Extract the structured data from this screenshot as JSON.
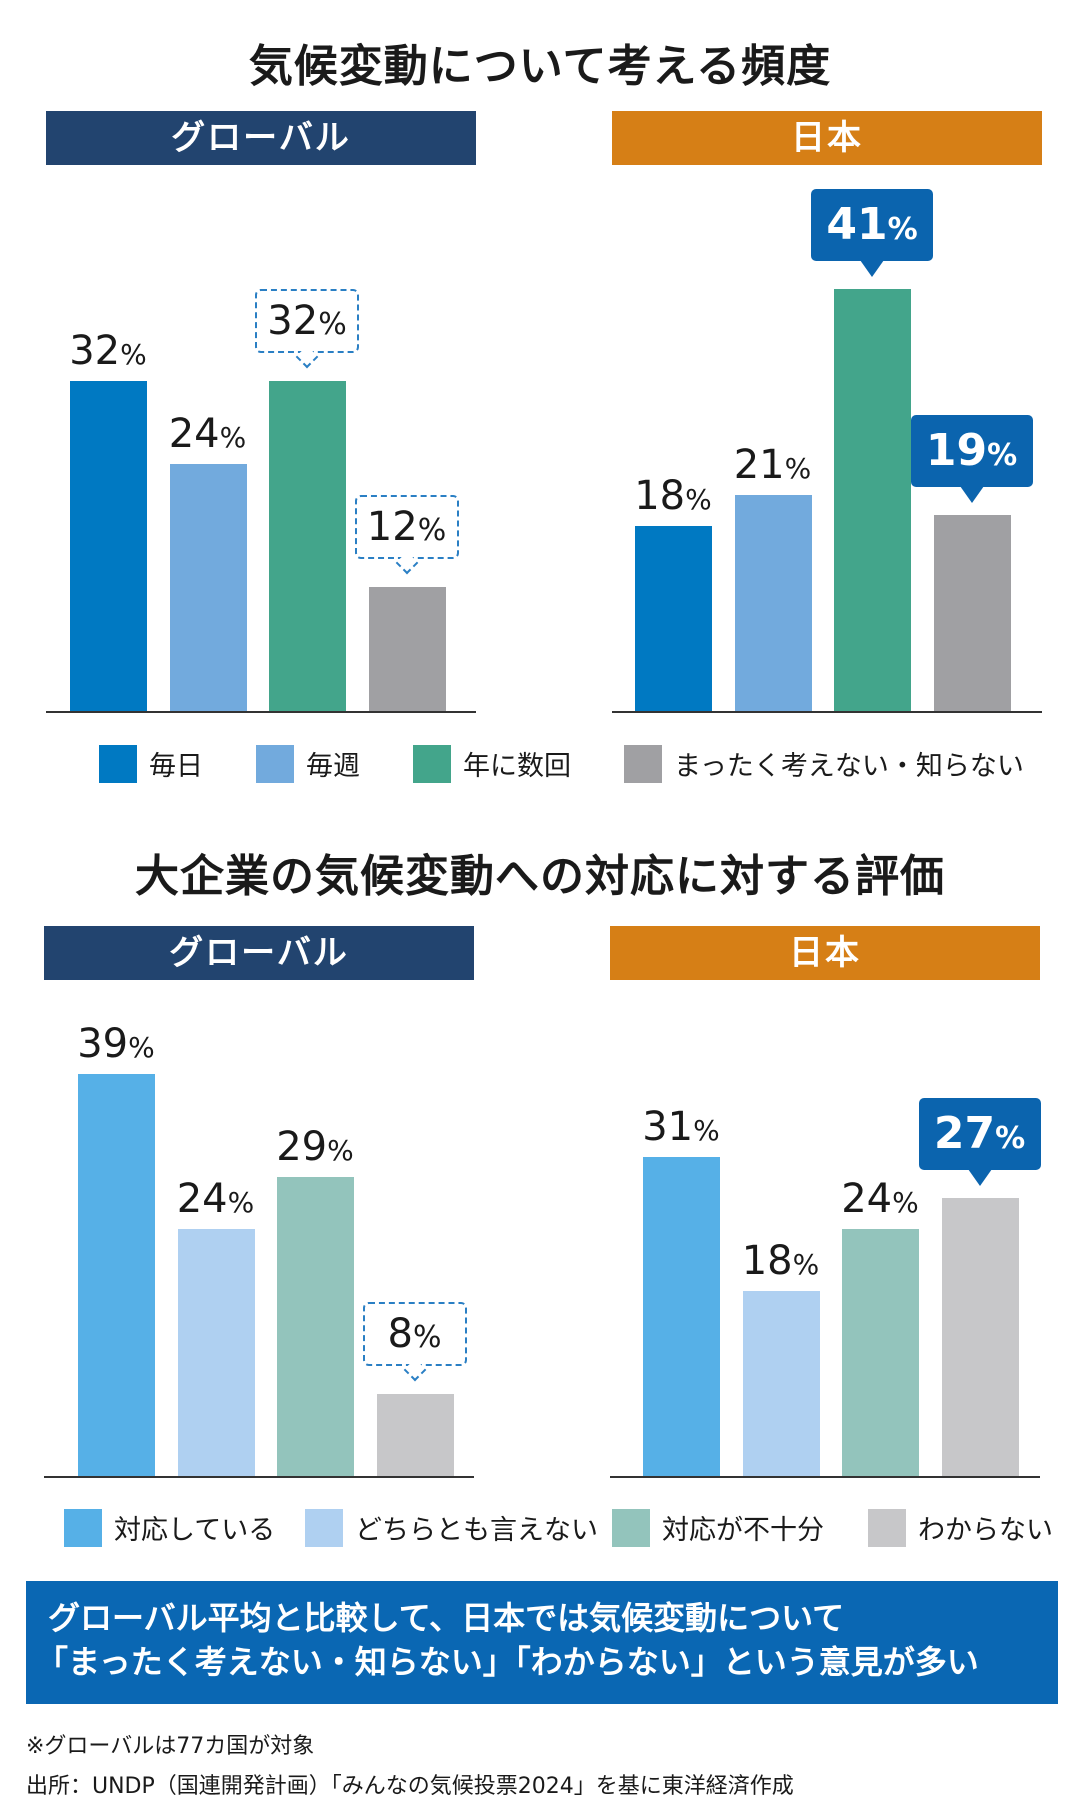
{
  "chart_data": [
    {
      "type": "bar",
      "title": "気候変動について考える頻度",
      "categories": [
        "毎日",
        "毎週",
        "年に数回",
        "まったく考えない・知らない"
      ],
      "colors": [
        "#0079c2",
        "#72aadd",
        "#43a58b",
        "#a0a0a3"
      ],
      "unit": "%",
      "ylim": [
        0,
        45
      ],
      "grid": false,
      "legend": "bottom",
      "series": [
        {
          "name": "グローバル",
          "header_color": "#22446f",
          "values": [
            32,
            24,
            32,
            12
          ],
          "callouts": [
            "none",
            "none",
            "dashed",
            "dashed"
          ]
        },
        {
          "name": "日本",
          "header_color": "#d67f16",
          "values": [
            18,
            21,
            41,
            19
          ],
          "callouts": [
            "none",
            "none",
            "solid",
            "solid"
          ]
        }
      ]
    },
    {
      "type": "bar",
      "title": "大企業の気候変動への対応に対する評価",
      "categories": [
        "対応している",
        "どちらとも言えない",
        "対応が不十分",
        "わからない"
      ],
      "colors": [
        "#56b0e7",
        "#afd0f1",
        "#93c4bc",
        "#c7c7c9"
      ],
      "unit": "%",
      "ylim": [
        0,
        45
      ],
      "grid": false,
      "legend": "bottom",
      "series": [
        {
          "name": "グローバル",
          "header_color": "#22446f",
          "values": [
            39,
            24,
            29,
            8
          ],
          "callouts": [
            "none",
            "none",
            "none",
            "dashed"
          ]
        },
        {
          "name": "日本",
          "header_color": "#d67f16",
          "values": [
            31,
            18,
            24,
            27
          ],
          "callouts": [
            "none",
            "none",
            "none",
            "solid"
          ]
        }
      ]
    }
  ],
  "summary": {
    "line1": "グローバル平均と比較して、日本では気候変動について",
    "line2": "「まったく考えない・知らない」「わからない」という意見が多い"
  },
  "notes": {
    "note": "※グローバルは77カ国が対象",
    "source": "出所：UNDP（国連開発計画）「みんなの気候投票2024」を基に東洋経済作成"
  }
}
